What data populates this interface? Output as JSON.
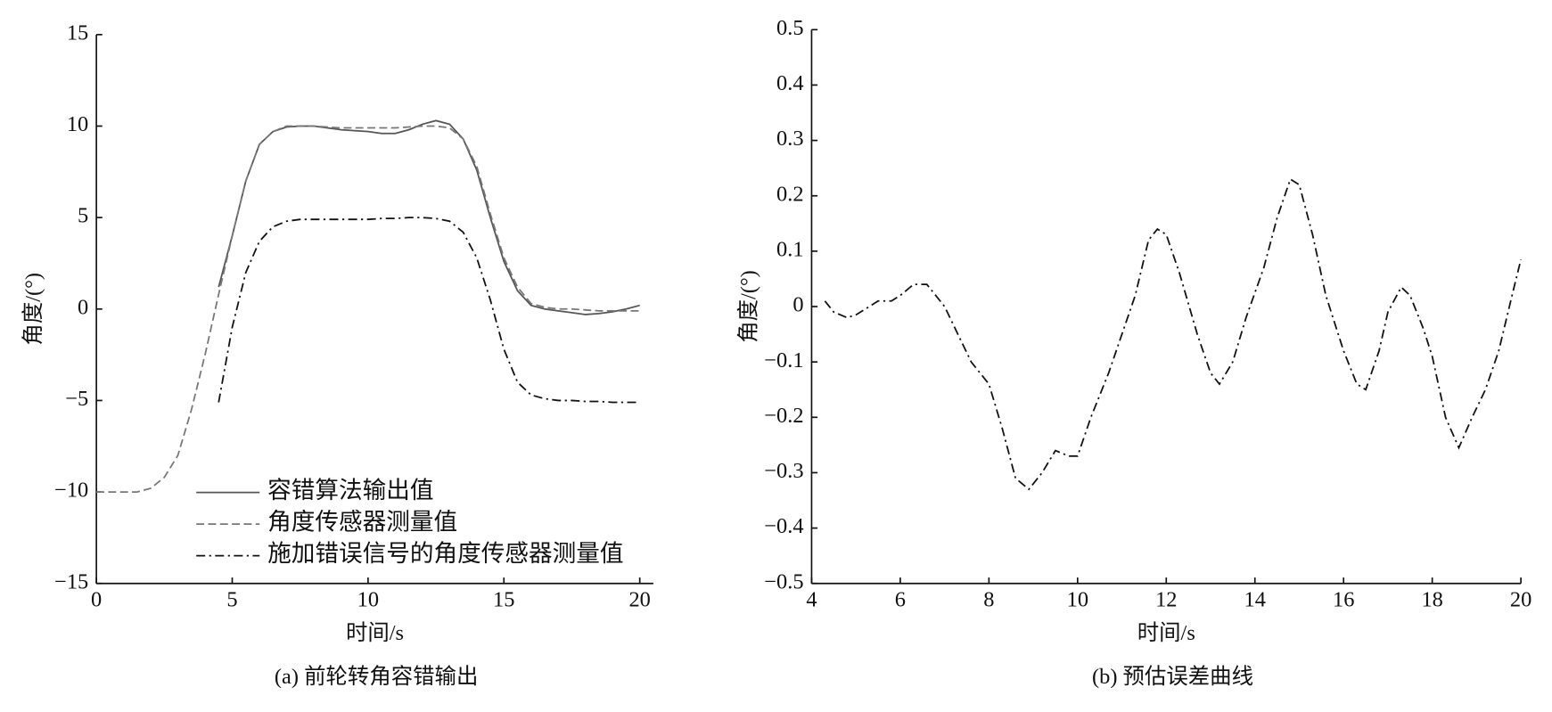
{
  "chart_data": [
    {
      "type": "line",
      "caption": "(a)  前轮转角容错输出",
      "xlabel": "时间/s",
      "ylabel": "角度/(°)",
      "xlim": [
        0,
        20.5
      ],
      "ylim": [
        -15,
        15
      ],
      "xticks": [
        0,
        5,
        10,
        15,
        20
      ],
      "yticks": [
        {
          "value": -15,
          "label": "−15"
        },
        {
          "value": -10,
          "label": "−10"
        },
        {
          "value": -5,
          "label": "−5"
        },
        0,
        5,
        10,
        15
      ],
      "legend": "lower left",
      "x": [
        0,
        0.5,
        1,
        1.5,
        2,
        2.5,
        3,
        3.5,
        4,
        4.5,
        5,
        5.5,
        6,
        6.5,
        7,
        7.5,
        8,
        8.5,
        9,
        9.5,
        10,
        10.5,
        11,
        11.5,
        12,
        12.5,
        13,
        13.5,
        14,
        14.5,
        15,
        15.5,
        16,
        16.5,
        17,
        17.5,
        18,
        18.5,
        19,
        19.5,
        20
      ],
      "series": [
        {
          "name": "容错算法输出值",
          "color": "#555555",
          "style": "solid",
          "values": [
            null,
            null,
            null,
            null,
            null,
            null,
            null,
            null,
            null,
            1.2,
            4,
            7,
            9,
            9.7,
            9.95,
            10,
            10,
            9.9,
            9.8,
            9.75,
            9.7,
            9.6,
            9.6,
            9.8,
            10.1,
            10.3,
            10.1,
            9.3,
            7.6,
            5,
            2.6,
            1,
            0.2,
            0,
            -0.1,
            -0.2,
            -0.3,
            -0.25,
            -0.15,
            0,
            0.2
          ]
        },
        {
          "name": "角度传感器测量值",
          "color": "#777777",
          "style": "dashed",
          "values": [
            -10,
            -10,
            -10,
            -10,
            -9.8,
            -9.2,
            -8,
            -5.5,
            -2.5,
            0.8,
            4,
            7,
            9,
            9.7,
            10,
            10,
            10,
            9.95,
            9.9,
            9.9,
            9.9,
            9.9,
            9.9,
            9.95,
            10,
            10,
            9.9,
            9.3,
            7.8,
            5.2,
            2.8,
            1.2,
            0.3,
            0.1,
            0,
            0,
            -0.05,
            -0.1,
            -0.1,
            -0.1,
            -0.1
          ]
        },
        {
          "name": "施加错误信号的角度传感器测量值",
          "color": "#111111",
          "style": "dashdot",
          "values": [
            null,
            null,
            null,
            null,
            null,
            null,
            null,
            null,
            null,
            -5.1,
            -1,
            2,
            3.7,
            4.5,
            4.8,
            4.9,
            4.9,
            4.9,
            4.9,
            4.9,
            4.9,
            4.95,
            4.95,
            5,
            5,
            4.95,
            4.8,
            4.2,
            2.8,
            0.5,
            -2.2,
            -4,
            -4.7,
            -4.9,
            -5,
            -5,
            -5.05,
            -5.05,
            -5.1,
            -5.1,
            -5.1
          ]
        }
      ]
    },
    {
      "type": "line",
      "caption": "(b) 预估误差曲线",
      "xlabel": "时间/s",
      "ylabel": "角度/(°)",
      "xlim": [
        4,
        20
      ],
      "ylim": [
        -0.5,
        0.5
      ],
      "xticks": [
        4,
        6,
        8,
        10,
        12,
        14,
        16,
        18,
        20
      ],
      "yticks": [
        {
          "value": -0.5,
          "label": "−0.5"
        },
        {
          "value": -0.4,
          "label": "−0.4"
        },
        {
          "value": -0.3,
          "label": "−0.3"
        },
        {
          "value": -0.2,
          "label": "−0.2"
        },
        {
          "value": -0.1,
          "label": "−0.1"
        },
        0,
        0.1,
        0.2,
        0.3,
        0.4,
        0.5
      ],
      "x": [
        4.3,
        4.5,
        4.8,
        5,
        5.5,
        5.8,
        6,
        6.3,
        6.6,
        7,
        7.3,
        7.6,
        8,
        8.3,
        8.6,
        8.9,
        9.2,
        9.5,
        9.8,
        10,
        10.3,
        10.7,
        11,
        11.3,
        11.6,
        11.8,
        12,
        12.3,
        12.7,
        13,
        13.2,
        13.5,
        13.8,
        14.2,
        14.5,
        14.8,
        15,
        15.3,
        15.6,
        16,
        16.3,
        16.5,
        16.8,
        17,
        17.3,
        17.5,
        17.8,
        18,
        18.3,
        18.6,
        18.9,
        19.2,
        19.5,
        19.8,
        20
      ],
      "series": [
        {
          "color": "#111111",
          "style": "dashdot",
          "values": [
            0.01,
            -0.01,
            -0.02,
            -0.015,
            0.01,
            0.01,
            0.02,
            0.04,
            0.04,
            0,
            -0.05,
            -0.1,
            -0.14,
            -0.22,
            -0.31,
            -0.33,
            -0.3,
            -0.26,
            -0.27,
            -0.27,
            -0.2,
            -0.12,
            -0.05,
            0.02,
            0.12,
            0.14,
            0.13,
            0.06,
            -0.05,
            -0.12,
            -0.14,
            -0.1,
            -0.02,
            0.07,
            0.16,
            0.23,
            0.22,
            0.13,
            0.02,
            -0.08,
            -0.14,
            -0.15,
            -0.08,
            -0.01,
            0.035,
            0.02,
            -0.04,
            -0.09,
            -0.2,
            -0.255,
            -0.2,
            -0.15,
            -0.08,
            0.02,
            0.085
          ]
        }
      ]
    }
  ]
}
